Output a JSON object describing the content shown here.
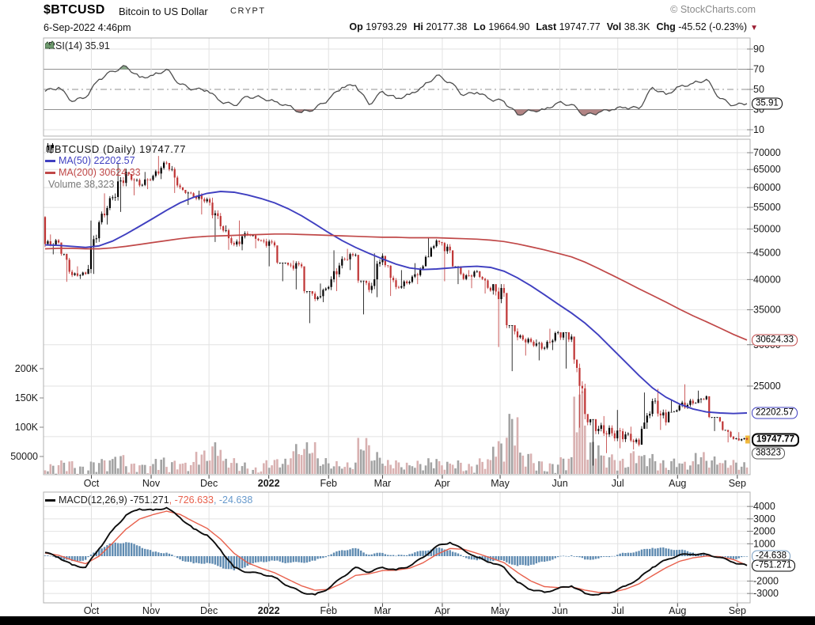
{
  "header": {
    "symbol": "$BTCUSD",
    "name": "Bitcoin to US Dollar",
    "exchange": "CRYPT",
    "credit": "© StockCharts.com",
    "datetime": "6-Sep-2022 4:46pm",
    "quote_items": [
      {
        "label": "Op",
        "value": "19793.29"
      },
      {
        "label": "Hi",
        "value": "20177.38"
      },
      {
        "label": "Lo",
        "value": "19664.90"
      },
      {
        "label": "Last",
        "value": "19747.77"
      },
      {
        "label": "Vol",
        "value": "38.3K"
      },
      {
        "label": "Chg",
        "value": "-45.52 (-0.23%)"
      }
    ],
    "change_direction": "down"
  },
  "legends": {
    "rsi": "RSI(14) 35.91",
    "price_title": "$BTCUSD (Daily) 19747.77",
    "ma50": "MA(50) 22202.57",
    "ma200": "MA(200) 30624.33",
    "volume": "Volume 38,323",
    "macd": "MACD(12,26,9) -751.271",
    "macd_signal": ", -726.633",
    "macd_hist": ", -24.638"
  },
  "axes": {
    "rsi": [
      90,
      70,
      50,
      30,
      10
    ],
    "price": [
      70000,
      65000,
      60000,
      55000,
      50000,
      45000,
      40000,
      35000,
      30000,
      25000
    ],
    "volume": [
      {
        "label": "200K",
        "value": 200000
      },
      {
        "label": "150K",
        "value": 150000
      },
      {
        "label": "100K",
        "value": 100000
      },
      {
        "label": "50000",
        "value": 50000
      }
    ],
    "macd": [
      4000,
      3000,
      2000,
      1000,
      -2000,
      -3000
    ],
    "months": [
      {
        "label": "Oct",
        "date": "2021-10-01"
      },
      {
        "label": "Nov",
        "date": "2021-11-01"
      },
      {
        "label": "Dec",
        "date": "2021-12-01"
      },
      {
        "label": "2022",
        "date": "2022-01-01",
        "bold": true
      },
      {
        "label": "Feb",
        "date": "2022-02-01"
      },
      {
        "label": "Mar",
        "date": "2022-03-01"
      },
      {
        "label": "Apr",
        "date": "2022-04-01"
      },
      {
        "label": "May",
        "date": "2022-05-01"
      },
      {
        "label": "Jun",
        "date": "2022-06-01"
      },
      {
        "label": "Jul",
        "date": "2022-07-01"
      },
      {
        "label": "Aug",
        "date": "2022-08-01"
      },
      {
        "label": "Sep",
        "date": "2022-09-01"
      }
    ]
  },
  "badges": {
    "rsi": [
      {
        "text": "35.91",
        "value": 35.91,
        "color": "#000000",
        "bold": false
      }
    ],
    "price": [
      {
        "text": "30624.33",
        "value": 30624.33,
        "color": "#c04848",
        "bold": false
      },
      {
        "text": "22202.57",
        "value": 22202.57,
        "color": "#3f3fc0",
        "bold": false
      },
      {
        "text": "19747.77",
        "value": 19747.77,
        "color": "#000000",
        "bold": true
      },
      {
        "text": "38323",
        "below_last": true,
        "color": "#555555",
        "bold": false
      }
    ],
    "macd": [
      {
        "text": "-24.638",
        "value": -24.638,
        "color": "#7aa0c4",
        "bold": false
      },
      {
        "text": "-751.271",
        "value": -751.271,
        "color": "#000000",
        "bold": false
      }
    ]
  },
  "colors": {
    "candle_up": "#000000",
    "candle_down": "#bf3434",
    "volume_up": "#a3a3a3",
    "volume_down": "#d9b1b1",
    "ma50": "#3f3fc0",
    "ma200": "#c04848",
    "rsi_line": "#4d4d4d",
    "rsi_over_fill": "#8aa88a",
    "rsi_under_fill": "#b28484",
    "macd_line": "#0d0d0d",
    "macd_signal": "#e8604c",
    "macd_hist": "#4e7ea8",
    "grid_light": "#e2e2e2",
    "grid_dark": "#909090",
    "panel_border": "#b0b0b0",
    "last_marker": "#f0b93c",
    "change_red": "#9b1c31"
  },
  "chart_data": {
    "type": "candlestick-multi-panel",
    "title": "$BTCUSD Daily with RSI(14), MA(50), MA(200), Volume and MACD(12,26,9)",
    "x_range": [
      "2021-09-07",
      "2022-09-06"
    ],
    "dates": [
      "2021-09-07",
      "2021-09-14",
      "2021-09-21",
      "2021-09-28",
      "2021-10-05",
      "2021-10-12",
      "2021-10-19",
      "2021-10-26",
      "2021-11-02",
      "2021-11-09",
      "2021-11-16",
      "2021-11-23",
      "2021-11-30",
      "2021-12-07",
      "2021-12-14",
      "2021-12-21",
      "2021-12-28",
      "2022-01-04",
      "2022-01-11",
      "2022-01-18",
      "2022-01-25",
      "2022-02-01",
      "2022-02-08",
      "2022-02-15",
      "2022-02-22",
      "2022-03-01",
      "2022-03-08",
      "2022-03-15",
      "2022-03-22",
      "2022-03-29",
      "2022-04-05",
      "2022-04-12",
      "2022-04-19",
      "2022-04-26",
      "2022-05-03",
      "2022-05-10",
      "2022-05-17",
      "2022-05-24",
      "2022-05-31",
      "2022-06-07",
      "2022-06-14",
      "2022-06-21",
      "2022-06-28",
      "2022-07-05",
      "2022-07-12",
      "2022-07-19",
      "2022-07-26",
      "2022-08-02",
      "2022-08-09",
      "2022-08-16",
      "2022-08-23",
      "2022-08-30",
      "2022-09-06"
    ],
    "price": {
      "type": "candlestick",
      "log_scale": true,
      "ylim": [
        17500,
        72000
      ],
      "open_first": 52700,
      "close": [
        46800,
        47100,
        40800,
        41000,
        51500,
        57500,
        64300,
        60600,
        63200,
        66900,
        60100,
        57600,
        57000,
        50600,
        46700,
        48900,
        47500,
        46500,
        42700,
        42400,
        36700,
        38700,
        43800,
        44600,
        38200,
        44400,
        38700,
        39600,
        42400,
        47500,
        45500,
        40100,
        41500,
        38100,
        37700,
        31000,
        30400,
        29600,
        31700,
        31100,
        22100,
        20700,
        20300,
        20200,
        19300,
        23400,
        21300,
        22950,
        23150,
        23900,
        21400,
        19800,
        19747.77
      ],
      "high": [
        52900,
        48800,
        44800,
        42400,
        51900,
        58500,
        66900,
        63700,
        64300,
        69000,
        66000,
        59400,
        59200,
        57400,
        50800,
        51900,
        48600,
        47900,
        43100,
        43500,
        38000,
        39300,
        45500,
        45800,
        39800,
        44900,
        42600,
        41700,
        43000,
        48200,
        47200,
        42400,
        41700,
        40600,
        39200,
        32700,
        31400,
        30700,
        32200,
        31700,
        28100,
        21600,
        21900,
        22500,
        20900,
        24300,
        24700,
        23500,
        25200,
        24500,
        21800,
        20600,
        20400
      ],
      "low": [
        44100,
        44700,
        39600,
        40100,
        41000,
        51000,
        53900,
        58000,
        59600,
        62300,
        58600,
        55600,
        53300,
        47200,
        45600,
        45500,
        45900,
        42400,
        39700,
        38300,
        33000,
        36200,
        38000,
        41700,
        34300,
        37000,
        37200,
        38400,
        39200,
        44200,
        39700,
        39200,
        38500,
        37600,
        29700,
        26700,
        28600,
        28000,
        29300,
        27000,
        20800,
        17600,
        18600,
        19000,
        18900,
        20700,
        20600,
        22300,
        22600,
        23200,
        20500,
        19500,
        19600
      ],
      "volume": [
        48000,
        36000,
        42000,
        33000,
        41000,
        45000,
        52000,
        38000,
        36000,
        47000,
        42000,
        39000,
        58000,
        72000,
        45000,
        38000,
        30000,
        42000,
        44000,
        68000,
        71000,
        45000,
        40000,
        38000,
        78000,
        55000,
        42000,
        38000,
        41000,
        45000,
        40000,
        42000,
        36000,
        45000,
        75000,
        120000,
        55000,
        42000,
        38000,
        48000,
        160000,
        75000,
        52000,
        45000,
        58000,
        52000,
        42000,
        45000,
        40000,
        55000,
        48000,
        42000,
        38323
      ],
      "last_close": 19747.77,
      "last_volume": 38323,
      "overlays": [
        {
          "name": "MA(50)",
          "last": 22202.57,
          "values": [
            46600,
            46500,
            46300,
            46100,
            46400,
            47400,
            48900,
            50600,
            52400,
            54300,
            56100,
            57500,
            58500,
            59000,
            58800,
            58100,
            57200,
            56100,
            54700,
            53000,
            51100,
            49200,
            47500,
            46100,
            44900,
            43800,
            42800,
            42100,
            41800,
            41900,
            42100,
            42300,
            42400,
            42200,
            41500,
            40300,
            38900,
            37400,
            35900,
            34500,
            33000,
            31300,
            29500,
            27800,
            26200,
            24800,
            23800,
            23100,
            22600,
            22300,
            22200,
            22150,
            22202.57
          ]
        },
        {
          "name": "MA(200)",
          "last": 30624.33,
          "values": [
            45800,
            45900,
            45900,
            45800,
            45800,
            46000,
            46300,
            46700,
            47100,
            47500,
            47900,
            48200,
            48400,
            48500,
            48600,
            48700,
            48800,
            48900,
            48900,
            48800,
            48700,
            48600,
            48500,
            48400,
            48300,
            48200,
            48200,
            48100,
            48100,
            48100,
            48000,
            47900,
            47800,
            47600,
            47300,
            46800,
            46200,
            45600,
            44900,
            44200,
            43200,
            42000,
            40800,
            39600,
            38400,
            37300,
            36200,
            35100,
            34100,
            33200,
            32300,
            31400,
            30624.33
          ]
        }
      ]
    },
    "rsi": {
      "type": "line",
      "name": "RSI(14)",
      "last": 35.91,
      "ylim": [
        0,
        100
      ],
      "overbought": 70,
      "midline": 50,
      "oversold": 30,
      "values": [
        48,
        52,
        38,
        42,
        60,
        68,
        73,
        62,
        64,
        70,
        55,
        50,
        49,
        38,
        34,
        43,
        42,
        38,
        34,
        27,
        31,
        40,
        52,
        54,
        35,
        48,
        41,
        45,
        53,
        64,
        57,
        44,
        47,
        40,
        38,
        25,
        29,
        30,
        37,
        35,
        24,
        27,
        30,
        32,
        31,
        52,
        45,
        53,
        56,
        60,
        41,
        34,
        35.91
      ]
    },
    "macd": {
      "type": "line+histogram",
      "name": "MACD(12,26,9)",
      "last_macd": -751.271,
      "last_signal": -726.633,
      "last_histogram": -24.638,
      "ylim": [
        -3750,
        5150
      ],
      "macd": [
        300,
        -100,
        -700,
        -900,
        600,
        2100,
        3300,
        3800,
        3700,
        3900,
        3100,
        2200,
        1700,
        500,
        -900,
        -1300,
        -1400,
        -1700,
        -2400,
        -2900,
        -3100,
        -2600,
        -1700,
        -900,
        -1300,
        -900,
        -1100,
        -800,
        -100,
        800,
        1100,
        500,
        -100,
        -500,
        -900,
        -2100,
        -2700,
        -2900,
        -2600,
        -2400,
        -3000,
        -3100,
        -2900,
        -2400,
        -1800,
        -900,
        -300,
        100,
        150,
        150,
        -100,
        -500,
        -751.271
      ],
      "signal": [
        250,
        75,
        -310,
        -605,
        0,
        1050,
        2175,
        2990,
        3345,
        3620,
        3360,
        2780,
        2240,
        1370,
        235,
        -530,
        -965,
        -1330,
        -1865,
        -2385,
        -2740,
        -2670,
        -2185,
        -1545,
        -1420,
        -1160,
        -1130,
        -965,
        -535,
        135,
        615,
        560,
        230,
        -135,
        -520,
        -1310,
        -2005,
        -2450,
        -2525,
        -2465,
        -2730,
        -2915,
        -2910,
        -2655,
        -2225,
        -1565,
        -930,
        -415,
        -135,
        10,
        -45,
        -275,
        -726.633
      ]
    }
  }
}
